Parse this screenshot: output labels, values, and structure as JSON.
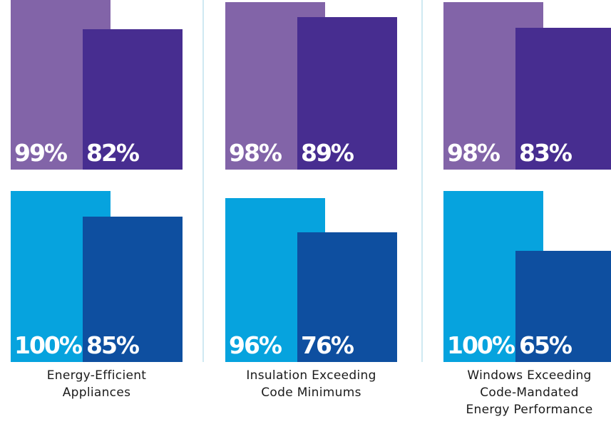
{
  "chart_data": {
    "type": "bar",
    "categories": [
      {
        "label_lines": [
          "Energy-Efficient",
          "Appliances"
        ]
      },
      {
        "label_lines": [
          "Insulation Exceeding",
          "Code Minimums"
        ]
      },
      {
        "label_lines": [
          "Windows Exceeding",
          "Code-Mandated",
          "Energy Performance"
        ]
      }
    ],
    "rows": [
      {
        "colors": [
          "#8264a8",
          "#472d90"
        ],
        "pairs": [
          {
            "values": [
              99,
              82
            ],
            "labels": [
              "99%",
              "82%"
            ]
          },
          {
            "values": [
              98,
              89
            ],
            "labels": [
              "98%",
              "89%"
            ]
          },
          {
            "values": [
              98,
              83
            ],
            "labels": [
              "98%",
              "83%"
            ]
          }
        ]
      },
      {
        "colors": [
          "#06a3de",
          "#0e4fa0"
        ],
        "pairs": [
          {
            "values": [
              100,
              85
            ],
            "labels": [
              "100%",
              "85%"
            ]
          },
          {
            "values": [
              96,
              76
            ],
            "labels": [
              "96%",
              "76%"
            ]
          },
          {
            "values": [
              100,
              65
            ],
            "labels": [
              "100%",
              "65%"
            ]
          }
        ]
      }
    ],
    "ylim": [
      0,
      100
    ]
  }
}
